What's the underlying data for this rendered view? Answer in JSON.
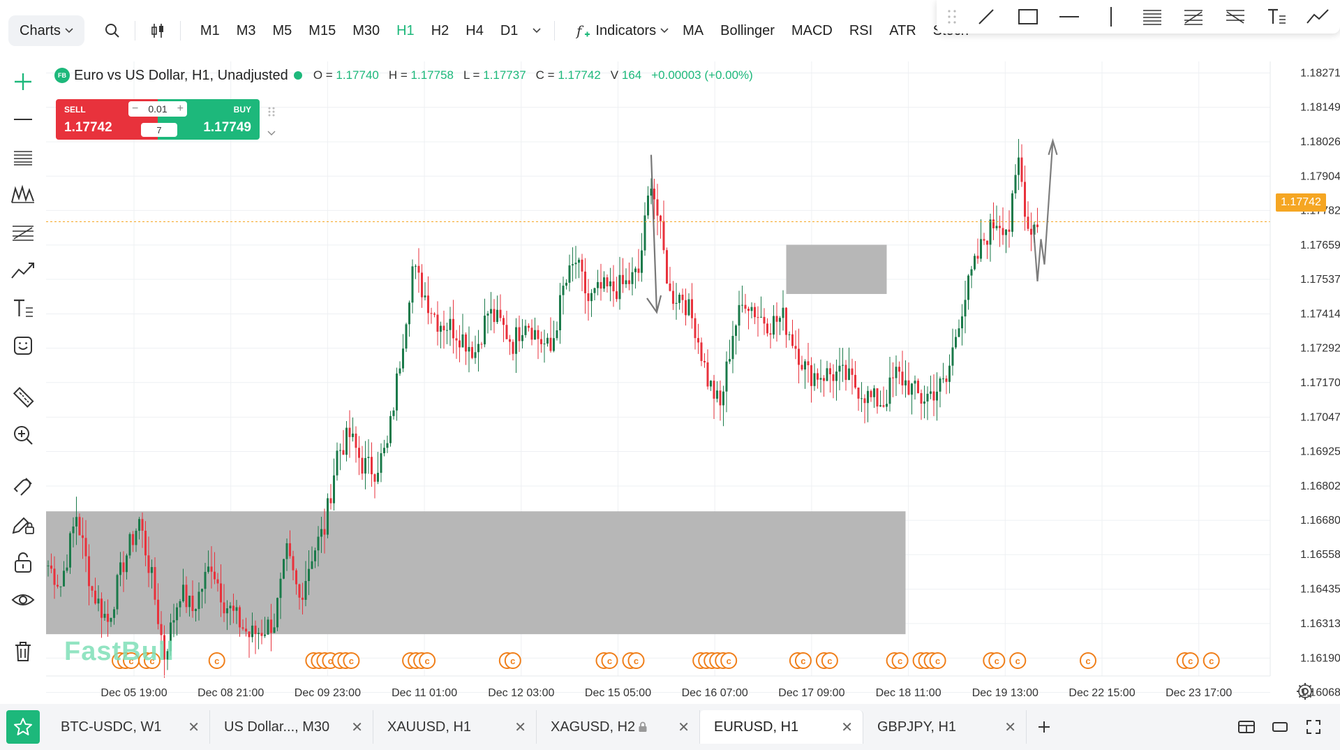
{
  "toolbar": {
    "charts_label": "Charts",
    "timeframes": [
      {
        "label": "M1",
        "active": false
      },
      {
        "label": "M3",
        "active": false
      },
      {
        "label": "M5",
        "active": false
      },
      {
        "label": "M15",
        "active": false
      },
      {
        "label": "M30",
        "active": false
      },
      {
        "label": "H1",
        "active": true
      },
      {
        "label": "H2",
        "active": false
      },
      {
        "label": "H4",
        "active": false
      },
      {
        "label": "D1",
        "active": false
      }
    ],
    "indicators_label": "Indicators",
    "indicator_items": [
      "MA",
      "Bollinger",
      "MACD",
      "RSI",
      "ATR",
      "Stoch"
    ]
  },
  "legend": {
    "badge": "FB",
    "symbol": "Euro vs US Dollar, H1, Unadjusted",
    "open_label": "O =",
    "open": "1.17740",
    "high_label": "H =",
    "high": "1.17758",
    "low_label": "L =",
    "low": "1.17737",
    "close_label": "C =",
    "close": "1.17742",
    "volume_label": "V",
    "volume": "164",
    "change": "+0.00003 (+0.00%)"
  },
  "trade": {
    "sell_label": "SELL",
    "sell_price": "1.17742",
    "buy_label": "BUY",
    "buy_price": "1.17749",
    "lot": "0.01",
    "quantity": "7"
  },
  "watermark": "FastBull",
  "colors": {
    "up": "#1a7a4a",
    "down": "#e8323c",
    "accent": "#1db87b",
    "price_badge": "#f5a623",
    "zone": "#b3b3b3",
    "event": "#f07f1a"
  },
  "chart_data": {
    "type": "candlestick",
    "y_ticks": [
      "1.18271",
      "1.18149",
      "1.18026",
      "1.17904",
      "1.17782",
      "1.17659",
      "1.17537",
      "1.17414",
      "1.17292",
      "1.17170",
      "1.17047",
      "1.16925",
      "1.16802",
      "1.16680",
      "1.16558",
      "1.16435",
      "1.16313",
      "1.16190",
      "1.16068"
    ],
    "x_ticks": [
      "Dec 05 19:00",
      "Dec 08 21:00",
      "Dec 09 23:00",
      "Dec 11 01:00",
      "Dec 12 03:00",
      "Dec 15 05:00",
      "Dec 16 07:00",
      "Dec 17 09:00",
      "Dec 18 11:00",
      "Dec 19 13:00",
      "Dec 22 15:00",
      "Dec 23 17:00"
    ],
    "ylim": [
      1.16027,
      1.18312
    ],
    "current_price": "1.17742",
    "current_price_value": 1.17742,
    "support_zone": {
      "from_bar": 0,
      "to_bar": 273,
      "low": 1.16275,
      "high": 1.16712
    },
    "resistance_zone": {
      "from_bar": 235,
      "to_bar": 267,
      "low": 1.17485,
      "high": 1.1766
    },
    "path": [
      [
        0,
        1.1652
      ],
      [
        4,
        1.1645
      ],
      [
        9,
        1.167
      ],
      [
        14,
        1.1643
      ],
      [
        19,
        1.1632
      ],
      [
        24,
        1.1653
      ],
      [
        29,
        1.1668
      ],
      [
        33,
        1.1647
      ],
      [
        37,
        1.162
      ],
      [
        42,
        1.1643
      ],
      [
        46,
        1.1636
      ],
      [
        52,
        1.1653
      ],
      [
        56,
        1.1639
      ],
      [
        60,
        1.1633
      ],
      [
        64,
        1.1627
      ],
      [
        68,
        1.1629
      ],
      [
        72,
        1.1632
      ],
      [
        76,
        1.1656
      ],
      [
        80,
        1.164
      ],
      [
        84,
        1.1656
      ],
      [
        88,
        1.1665
      ],
      [
        92,
        1.1692
      ],
      [
        96,
        1.1698
      ],
      [
        100,
        1.1688
      ],
      [
        104,
        1.1686
      ],
      [
        108,
        1.1694
      ],
      [
        112,
        1.1725
      ],
      [
        116,
        1.1758
      ],
      [
        120,
        1.1748
      ],
      [
        124,
        1.1739
      ],
      [
        128,
        1.1737
      ],
      [
        132,
        1.1733
      ],
      [
        136,
        1.1728
      ],
      [
        140,
        1.1742
      ],
      [
        144,
        1.1738
      ],
      [
        148,
        1.1731
      ],
      [
        152,
        1.174
      ],
      [
        156,
        1.1733
      ],
      [
        160,
        1.1728
      ],
      [
        164,
        1.175
      ],
      [
        168,
        1.176
      ],
      [
        172,
        1.1746
      ],
      [
        176,
        1.175
      ],
      [
        180,
        1.175
      ],
      [
        184,
        1.1752
      ],
      [
        188,
        1.1756
      ],
      [
        192,
        1.179
      ],
      [
        195,
        1.177
      ],
      [
        198,
        1.1748
      ],
      [
        202,
        1.1748
      ],
      [
        206,
        1.1737
      ],
      [
        210,
        1.1718
      ],
      [
        214,
        1.1708
      ],
      [
        218,
        1.1735
      ],
      [
        222,
        1.1747
      ],
      [
        226,
        1.1741
      ],
      [
        230,
        1.1738
      ],
      [
        234,
        1.174
      ],
      [
        238,
        1.173
      ],
      [
        242,
        1.172
      ],
      [
        246,
        1.172
      ],
      [
        250,
        1.172
      ],
      [
        254,
        1.1719
      ],
      [
        258,
        1.1715
      ],
      [
        262,
        1.1711
      ],
      [
        266,
        1.171
      ],
      [
        270,
        1.172
      ],
      [
        274,
        1.1716
      ],
      [
        278,
        1.1711
      ],
      [
        282,
        1.1714
      ],
      [
        286,
        1.1717
      ],
      [
        290,
        1.174
      ],
      [
        294,
        1.1755
      ],
      [
        298,
        1.1768
      ],
      [
        302,
        1.1775
      ],
      [
        306,
        1.1772
      ],
      [
        309,
        1.1796
      ],
      [
        312,
        1.1772
      ],
      [
        315,
        1.1774
      ]
    ],
    "seed": 7,
    "event_markers": [
      {
        "count": 3,
        "at_date": "Dec 05 19:00"
      },
      {
        "count": 2,
        "at_date": "Dec 05 19:00"
      },
      {
        "count": 1,
        "at_date": "Dec 08 21:00"
      },
      {
        "count": 4,
        "at_date": "Dec 09 23:00"
      },
      {
        "count": 3,
        "at_date": "Dec 09 23:00"
      },
      {
        "count": 4,
        "at_date": "Dec 11 01:00"
      },
      {
        "count": 2,
        "at_date": "Dec 12 03:00"
      },
      {
        "count": 2,
        "at_date": "Dec 15 05:00"
      },
      {
        "count": 2,
        "at_date": "Dec 15 05:00"
      },
      {
        "count": 6,
        "at_date": "Dec 16 07:00"
      },
      {
        "count": 2,
        "at_date": "Dec 17 09:00"
      },
      {
        "count": 2,
        "at_date": "Dec 17 09:00"
      },
      {
        "count": 2,
        "at_date": "Dec 18 11:00"
      },
      {
        "count": 4,
        "at_date": "Dec 18 11:00"
      },
      {
        "count": 2,
        "at_date": "Dec 19 13:00"
      },
      {
        "count": 1,
        "at_date": "Dec 19 13:00"
      },
      {
        "count": 1,
        "at_date": "Dec 22 15:00"
      },
      {
        "count": 2,
        "at_date": "Dec 23 17:00"
      },
      {
        "count": 1,
        "at_date": "Dec 23 17:00"
      }
    ]
  },
  "tabs": [
    {
      "label": "BTC-USDC, W1",
      "active": false,
      "locked": false
    },
    {
      "label": "US Dollar..., M30",
      "active": false,
      "locked": false
    },
    {
      "label": "XAUUSD, H1",
      "active": false,
      "locked": false
    },
    {
      "label": "XAGUSD, H2",
      "active": false,
      "locked": true
    },
    {
      "label": "EURUSD, H1",
      "active": true,
      "locked": false
    },
    {
      "label": "GBPJPY, H1",
      "active": false,
      "locked": false
    }
  ]
}
